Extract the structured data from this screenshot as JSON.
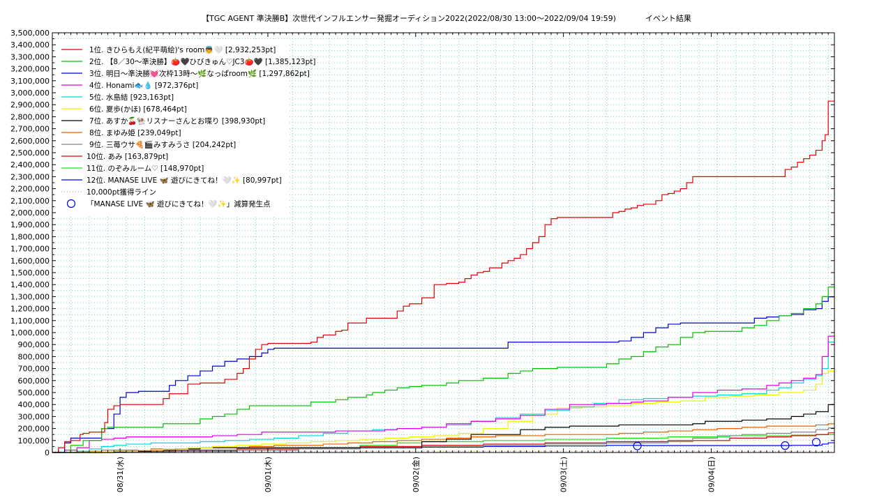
{
  "chart_data": {
    "type": "line",
    "title": "【TGC AGENT 準決勝B】次世代インフルエンサー発掘オーディション2022(2022/08/30 13:00〜2022/09/04 19:59)            イベント結果",
    "ylim": [
      0,
      3500000
    ],
    "y_ticks": [
      "0",
      "100,000",
      "200,000",
      "300,000",
      "400,000",
      "500,000",
      "600,000",
      "700,000",
      "800,000",
      "900,000",
      "1,000,000",
      "1,100,000",
      "1,200,000",
      "1,300,000",
      "1,400,000",
      "1,500,000",
      "1,600,000",
      "1,700,000",
      "1,800,000",
      "1,900,000",
      "2,000,000",
      "2,100,000",
      "2,200,000",
      "2,300,000",
      "2,400,000",
      "2,500,000",
      "2,600,000",
      "2,700,000",
      "2,800,000",
      "2,900,000",
      "3,000,000",
      "3,100,000",
      "3,200,000",
      "3,300,000",
      "3,400,000",
      "3,500,000"
    ],
    "xlim_hours_from_0830_1300": [
      0,
      127
    ],
    "x_ticks": [
      {
        "label": "08/31(水)",
        "hour": 11
      },
      {
        "label": "09/01(木)",
        "hour": 35
      },
      {
        "label": "09/02(金)",
        "hour": 59
      },
      {
        "label": "09/03(土)",
        "hour": 83
      },
      {
        "label": "09/04(日)",
        "hour": 107
      }
    ],
    "grid": true,
    "legend_position": "top-left",
    "series": [
      {
        "name": "1位. きひらもえ(紀平萌絵)'s room👼🤍 [2,932,253pt]",
        "color": "#e00000",
        "x": [
          0,
          1,
          2,
          3,
          4,
          4.5,
          5,
          6,
          8,
          8.5,
          9,
          10,
          11,
          14,
          18,
          19,
          20,
          22,
          23,
          24,
          26,
          28,
          30,
          31,
          32,
          33,
          34,
          35,
          36,
          40,
          42,
          43,
          44,
          46,
          47,
          48,
          51,
          56,
          57,
          58,
          60,
          62,
          64,
          65,
          66,
          67,
          68,
          69,
          70,
          71,
          72,
          73,
          74,
          75,
          76,
          77,
          78,
          79,
          80,
          81,
          82,
          90,
          91,
          92,
          93,
          94,
          95,
          96,
          98,
          99,
          100,
          101,
          102,
          103,
          104,
          105,
          106,
          107,
          108,
          110,
          111,
          112,
          118,
          119,
          120,
          121,
          122,
          123,
          124,
          125,
          125.5,
          126,
          127
        ],
        "values": [
          0,
          40000,
          90000,
          100000,
          100000,
          150000,
          160000,
          170000,
          170000,
          250000,
          360000,
          390000,
          400000,
          400000,
          450000,
          490000,
          490000,
          570000,
          570000,
          580000,
          580000,
          610000,
          660000,
          700000,
          780000,
          860000,
          900000,
          910000,
          910000,
          910000,
          920000,
          960000,
          980000,
          1010000,
          1020000,
          1080000,
          1120000,
          1180000,
          1220000,
          1240000,
          1290000,
          1400000,
          1410000,
          1410000,
          1420000,
          1450000,
          1480000,
          1500000,
          1510000,
          1540000,
          1540000,
          1580000,
          1600000,
          1620000,
          1650000,
          1700000,
          1750000,
          1800000,
          1900000,
          1950000,
          1960000,
          1960000,
          2000000,
          2010000,
          2030000,
          2040000,
          2060000,
          2070000,
          2100000,
          2150000,
          2160000,
          2180000,
          2200000,
          2250000,
          2300000,
          2300000,
          2300000,
          2300000,
          2300000,
          2300000,
          2300000,
          2300000,
          2300000,
          2360000,
          2380000,
          2420000,
          2450000,
          2480000,
          2520000,
          2600000,
          2650000,
          2930000,
          2932253
        ]
      },
      {
        "name": "2位. 【8／30〜準決勝】🍅🖤ひびきゅん♡JC3🍅🖤 [1,385,123pt]",
        "color": "#00c000",
        "x": [
          0,
          3,
          5,
          8,
          9,
          14,
          16,
          18,
          22,
          24,
          26,
          28,
          30,
          32,
          38,
          42,
          46,
          48,
          51,
          52,
          54,
          56,
          58,
          60,
          62,
          64,
          66,
          68,
          70,
          72,
          74,
          76,
          78,
          82,
          88,
          90,
          92,
          94,
          96,
          98,
          100,
          102,
          104,
          106,
          108,
          110,
          112,
          114,
          116,
          118,
          120,
          122,
          124,
          125,
          126,
          127
        ],
        "values": [
          0,
          60000,
          100000,
          200000,
          210000,
          210000,
          210000,
          240000,
          240000,
          280000,
          300000,
          320000,
          360000,
          390000,
          390000,
          420000,
          440000,
          460000,
          480000,
          500000,
          520000,
          540000,
          550000,
          560000,
          560000,
          580000,
          600000,
          600000,
          620000,
          620000,
          660000,
          680000,
          700000,
          710000,
          710000,
          740000,
          780000,
          800000,
          840000,
          880000,
          900000,
          960000,
          1000000,
          1010000,
          1010000,
          1010000,
          1040000,
          1060000,
          1100000,
          1140000,
          1160000,
          1200000,
          1240000,
          1300000,
          1380000,
          1385123
        ]
      },
      {
        "name": "3位. 明日〜準決勝💓次枠13時〜🌿なっぱroom🌿 [1,297,862pt]",
        "color": "#0000cc",
        "x": [
          0,
          2,
          3,
          4,
          6,
          8,
          9,
          10,
          11,
          12,
          14,
          18,
          19,
          20,
          22,
          24,
          26,
          28,
          30,
          32,
          34,
          35,
          36,
          46,
          56,
          72,
          74,
          76,
          78,
          80,
          82,
          90,
          92,
          94,
          96,
          98,
          100,
          102,
          104,
          106,
          108,
          110,
          112,
          114,
          116,
          118,
          120,
          122,
          124,
          125,
          126,
          127
        ],
        "values": [
          0,
          80000,
          120000,
          120000,
          120000,
          200000,
          200000,
          320000,
          460000,
          500000,
          510000,
          510000,
          560000,
          600000,
          640000,
          680000,
          720000,
          760000,
          780000,
          800000,
          830000,
          860000,
          870000,
          870000,
          870000,
          870000,
          920000,
          920000,
          920000,
          920000,
          920000,
          920000,
          930000,
          960000,
          1000000,
          1040000,
          1070000,
          1080000,
          1080000,
          1080000,
          1080000,
          1080000,
          1080000,
          1120000,
          1130000,
          1140000,
          1150000,
          1190000,
          1200000,
          1260000,
          1297862,
          1297862
        ]
      },
      {
        "name": "4位. Honami🐟💧 [972,376pt]",
        "color": "#e000e0",
        "x": [
          0,
          2,
          4,
          6,
          8,
          10,
          12,
          14,
          18,
          22,
          26,
          30,
          34,
          38,
          42,
          46,
          50,
          54,
          56,
          60,
          64,
          68,
          72,
          76,
          80,
          84,
          86,
          90,
          94,
          96,
          100,
          104,
          108,
          112,
          116,
          118,
          120,
          122,
          124,
          125,
          126,
          127
        ],
        "values": [
          0,
          20000,
          40000,
          100000,
          110000,
          120000,
          130000,
          130000,
          130000,
          130000,
          140000,
          150000,
          170000,
          170000,
          170000,
          180000,
          180000,
          190000,
          200000,
          210000,
          240000,
          260000,
          280000,
          310000,
          360000,
          400000,
          400000,
          410000,
          420000,
          430000,
          460000,
          500000,
          520000,
          530000,
          560000,
          580000,
          600000,
          620000,
          650000,
          800000,
          970000,
          972376
        ]
      },
      {
        "name": "5位. 水島結 [923,163pt]",
        "color": "#00d8d8",
        "x": [
          0,
          4,
          6,
          8,
          10,
          12,
          16,
          20,
          24,
          28,
          32,
          36,
          40,
          44,
          48,
          52,
          56,
          60,
          64,
          68,
          72,
          76,
          80,
          84,
          88,
          92,
          96,
          100,
          104,
          108,
          112,
          116,
          118,
          120,
          122,
          124,
          125,
          126,
          127
        ],
        "values": [
          0,
          10000,
          30000,
          50000,
          60000,
          70000,
          80000,
          80000,
          90000,
          100000,
          110000,
          120000,
          140000,
          160000,
          180000,
          190000,
          200000,
          210000,
          230000,
          260000,
          290000,
          320000,
          350000,
          380000,
          410000,
          440000,
          450000,
          460000,
          470000,
          480000,
          490000,
          520000,
          540000,
          580000,
          610000,
          640000,
          700000,
          920000,
          923163
        ]
      },
      {
        "name": "6位. 夏歩(かほ) [678,464pt]",
        "color": "#f0f000",
        "x": [
          0,
          6,
          10,
          14,
          18,
          22,
          26,
          30,
          34,
          38,
          42,
          46,
          50,
          54,
          58,
          62,
          66,
          70,
          74,
          78,
          82,
          86,
          90,
          94,
          98,
          102,
          106,
          110,
          114,
          118,
          122,
          124,
          125,
          126,
          127
        ],
        "values": [
          0,
          5000,
          10000,
          20000,
          30000,
          40000,
          50000,
          60000,
          70000,
          80000,
          90000,
          100000,
          110000,
          120000,
          130000,
          140000,
          160000,
          200000,
          260000,
          320000,
          370000,
          380000,
          390000,
          410000,
          420000,
          430000,
          460000,
          470000,
          480000,
          500000,
          520000,
          570000,
          660000,
          678464,
          678464
        ]
      },
      {
        "name": "7位. あすか🍒🐏リスナーさんとお喋り [398,930pt]",
        "color": "#000000",
        "x": [
          0,
          8,
          12,
          16,
          20,
          24,
          28,
          32,
          36,
          40,
          44,
          48,
          52,
          56,
          58,
          60,
          64,
          68,
          72,
          76,
          80,
          84,
          88,
          92,
          96,
          100,
          104,
          106,
          108,
          112,
          116,
          120,
          122,
          124,
          126,
          127
        ],
        "values": [
          0,
          5000,
          10000,
          20000,
          30000,
          40000,
          40000,
          40000,
          40000,
          40000,
          40000,
          40000,
          40000,
          40000,
          40000,
          90000,
          110000,
          150000,
          150000,
          190000,
          210000,
          220000,
          220000,
          230000,
          230000,
          230000,
          240000,
          260000,
          260000,
          270000,
          280000,
          300000,
          320000,
          340000,
          398930,
          398930
        ]
      },
      {
        "name": "8位. まゆみ姫 [239,049pt]",
        "color": "#e06000",
        "x": [
          0,
          4,
          8,
          12,
          16,
          20,
          24,
          28,
          32,
          36,
          40,
          44,
          48,
          52,
          56,
          60,
          64,
          68,
          72,
          76,
          80,
          84,
          88,
          92,
          96,
          100,
          104,
          108,
          112,
          116,
          120,
          124,
          126,
          127
        ],
        "values": [
          0,
          10000,
          20000,
          20000,
          30000,
          30000,
          40000,
          40000,
          50000,
          60000,
          60000,
          70000,
          80000,
          90000,
          100000,
          110000,
          120000,
          130000,
          140000,
          140000,
          150000,
          150000,
          150000,
          160000,
          170000,
          180000,
          190000,
          200000,
          210000,
          220000,
          220000,
          230000,
          239049,
          239049
        ]
      },
      {
        "name": "9位. 三苺ウサ🍕🎬みすみうさ [204,242pt]",
        "color": "#808080",
        "x": [
          0,
          10,
          20,
          30,
          40,
          50,
          60,
          70,
          80,
          90,
          100,
          104,
          108,
          112,
          116,
          120,
          124,
          126,
          127
        ],
        "values": [
          0,
          5000,
          10000,
          20000,
          30000,
          40000,
          50000,
          60000,
          70000,
          80000,
          90000,
          120000,
          140000,
          150000,
          160000,
          170000,
          190000,
          204242,
          204242
        ]
      },
      {
        "name": "10位. あみ [163,879pt]",
        "color": "#cc0000",
        "x": [
          0,
          10,
          20,
          30,
          40,
          50,
          60,
          70,
          80,
          90,
          100,
          110,
          116,
          120,
          124,
          126,
          127
        ],
        "values": [
          0,
          10000,
          20000,
          30000,
          40000,
          50000,
          60000,
          70000,
          80000,
          90000,
          100000,
          120000,
          130000,
          140000,
          150000,
          163879,
          163879
        ]
      },
      {
        "name": "11位. のぞみルーム♡ [148,970pt]",
        "color": "#20e020",
        "x": [
          0,
          10,
          20,
          30,
          40,
          50,
          56,
          60,
          70,
          80,
          90,
          100,
          110,
          116,
          120,
          124,
          126,
          127
        ],
        "values": [
          0,
          10000,
          20000,
          30000,
          40000,
          60000,
          80000,
          90000,
          100000,
          110000,
          120000,
          130000,
          140000,
          140000,
          145000,
          148000,
          148970,
          148970
        ]
      },
      {
        "name": "12位. MANASE LIVE 🦋 遊びにきてね！🤍✨ [80,997pt]",
        "color": "#0000ee",
        "x": [
          0,
          10,
          20,
          30,
          40,
          50,
          60,
          70,
          80,
          90,
          95,
          96,
          100,
          110,
          119,
          120,
          124,
          125,
          126,
          127
        ],
        "values": [
          0,
          5000,
          10000,
          20000,
          30000,
          40000,
          45000,
          50000,
          55000,
          60000,
          60000,
          58000,
          58000,
          58000,
          58000,
          60000,
          60000,
          70000,
          80997,
          80997
        ]
      }
    ],
    "threshold_line": {
      "name": "10,000pt獲得ライン",
      "value": 10000,
      "color": "#ff8080"
    },
    "markers": {
      "name": "「MANASE LIVE 🦋 遊びにきてね！🤍✨」減算発生点",
      "color": "#0000ee",
      "points": [
        {
          "x": 95,
          "y": 55000
        },
        {
          "x": 119,
          "y": 58000
        },
        {
          "x": 127.3,
          "y": 86000
        }
      ]
    }
  }
}
